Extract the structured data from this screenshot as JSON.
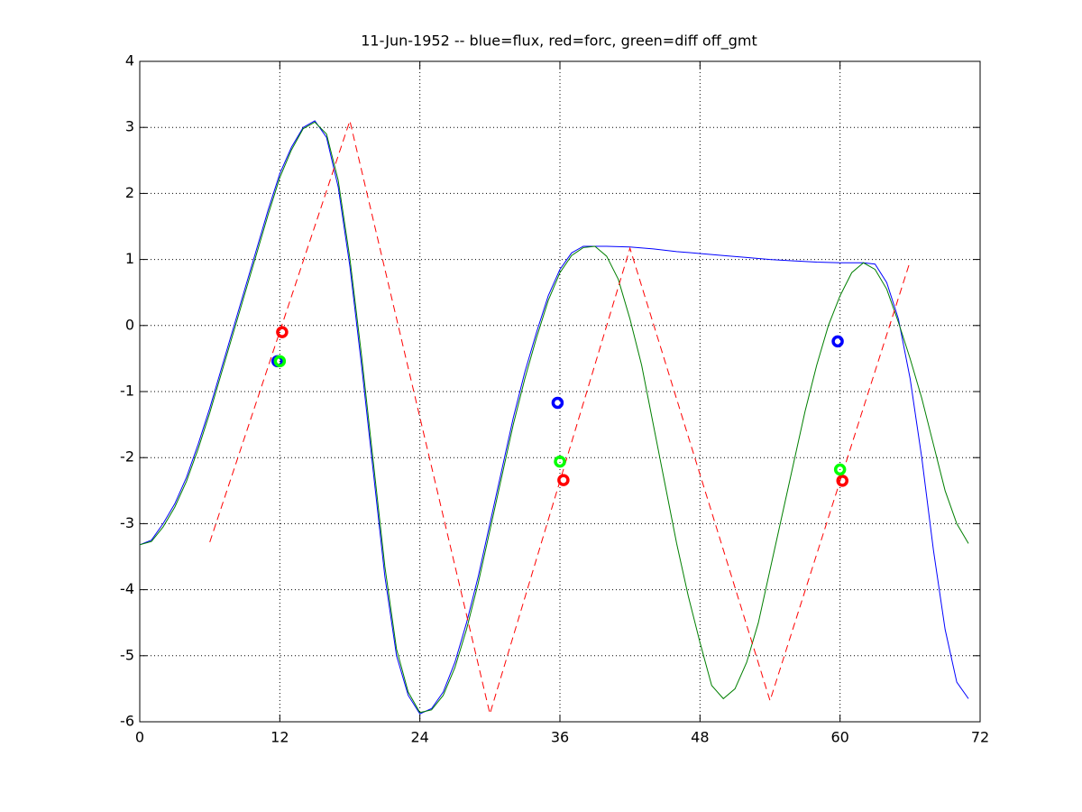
{
  "chart_data": {
    "type": "line",
    "title": "11-Jun-1952 -- blue=flux, red=forc, green=diff off_gmt",
    "xlim": [
      0,
      72
    ],
    "xticks": [
      0,
      12,
      24,
      36,
      48,
      60,
      72
    ],
    "ylim": [
      -6,
      4
    ],
    "yticks": [
      -6,
      -5,
      -4,
      -3,
      -2,
      -1,
      0,
      1,
      2,
      3,
      4
    ],
    "grid": true,
    "series": [
      {
        "color": "#0000ff",
        "linestyle": "solid",
        "x": [
          0,
          1,
          2,
          3,
          4,
          5,
          6,
          7,
          8,
          9,
          10,
          11,
          12,
          13,
          14,
          15,
          16,
          17,
          18,
          19,
          20,
          21,
          22,
          23,
          24,
          25,
          26,
          27,
          28,
          29,
          30,
          31,
          32,
          33,
          34,
          35,
          36,
          37,
          38,
          39,
          40,
          42,
          44,
          46,
          48,
          50,
          52,
          54,
          56,
          58,
          60,
          62,
          63,
          64,
          65,
          66,
          67,
          68,
          69,
          70,
          71
        ],
        "values": [
          -3.32,
          -3.25,
          -3.0,
          -2.7,
          -2.3,
          -1.8,
          -1.25,
          -0.65,
          -0.05,
          0.55,
          1.15,
          1.75,
          2.3,
          2.7,
          3.0,
          3.1,
          2.85,
          2.1,
          0.9,
          -0.6,
          -2.2,
          -3.8,
          -5.0,
          -5.6,
          -5.88,
          -5.8,
          -5.55,
          -5.1,
          -4.5,
          -3.8,
          -3.0,
          -2.2,
          -1.4,
          -0.7,
          -0.1,
          0.45,
          0.85,
          1.1,
          1.2,
          1.2,
          1.2,
          1.19,
          1.16,
          1.12,
          1.09,
          1.06,
          1.03,
          1.0,
          0.98,
          0.96,
          0.95,
          0.95,
          0.93,
          0.65,
          0.1,
          -0.8,
          -2.0,
          -3.4,
          -4.6,
          -5.4,
          -5.65
        ]
      },
      {
        "color": "#007f00",
        "linestyle": "solid",
        "x": [
          0,
          1,
          2,
          3,
          4,
          5,
          6,
          7,
          8,
          9,
          10,
          11,
          12,
          13,
          14,
          15,
          16,
          17,
          18,
          19,
          20,
          21,
          22,
          23,
          24,
          25,
          26,
          27,
          28,
          29,
          30,
          31,
          32,
          33,
          34,
          35,
          36,
          37,
          38,
          39,
          40,
          41,
          42,
          43,
          44,
          45,
          46,
          47,
          48,
          49,
          50,
          51,
          52,
          53,
          54,
          55,
          56,
          57,
          58,
          59,
          60,
          61,
          62,
          63,
          64,
          65,
          66,
          67,
          68,
          69,
          70,
          71
        ],
        "values": [
          -3.32,
          -3.27,
          -3.05,
          -2.75,
          -2.36,
          -1.87,
          -1.32,
          -0.72,
          -0.12,
          0.48,
          1.08,
          1.68,
          2.24,
          2.66,
          2.98,
          3.08,
          2.9,
          2.2,
          1.02,
          -0.45,
          -2.05,
          -3.65,
          -4.9,
          -5.55,
          -5.86,
          -5.82,
          -5.6,
          -5.18,
          -4.6,
          -3.9,
          -3.1,
          -2.3,
          -1.5,
          -0.8,
          -0.18,
          0.38,
          0.8,
          1.06,
          1.18,
          1.2,
          1.05,
          0.7,
          0.1,
          -0.6,
          -1.5,
          -2.4,
          -3.3,
          -4.1,
          -4.8,
          -5.45,
          -5.65,
          -5.5,
          -5.1,
          -4.5,
          -3.7,
          -2.9,
          -2.1,
          -1.3,
          -0.6,
          0.0,
          0.45,
          0.8,
          0.95,
          0.85,
          0.55,
          0.05,
          -0.5,
          -1.1,
          -1.8,
          -2.5,
          -3.0,
          -3.3
        ]
      },
      {
        "color": "#ff0000",
        "linestyle": "dashed",
        "x": [
          6,
          18,
          30,
          42,
          54,
          66
        ],
        "values": [
          -3.28,
          3.1,
          -5.88,
          1.17,
          -5.68,
          0.97
        ]
      },
      {
        "color": "#0000ff",
        "marker": "o",
        "x": [
          11.8,
          35.8,
          59.8
        ],
        "values": [
          -0.54,
          -1.17,
          -0.24
        ]
      },
      {
        "color": "#ff0000",
        "marker": "o",
        "x": [
          12.2,
          36.3,
          60.2
        ],
        "values": [
          -0.1,
          -2.34,
          -2.35
        ]
      },
      {
        "color": "#00ff00",
        "marker": "o",
        "x": [
          12,
          36,
          60
        ],
        "values": [
          -0.54,
          -2.06,
          -2.18
        ]
      }
    ]
  }
}
